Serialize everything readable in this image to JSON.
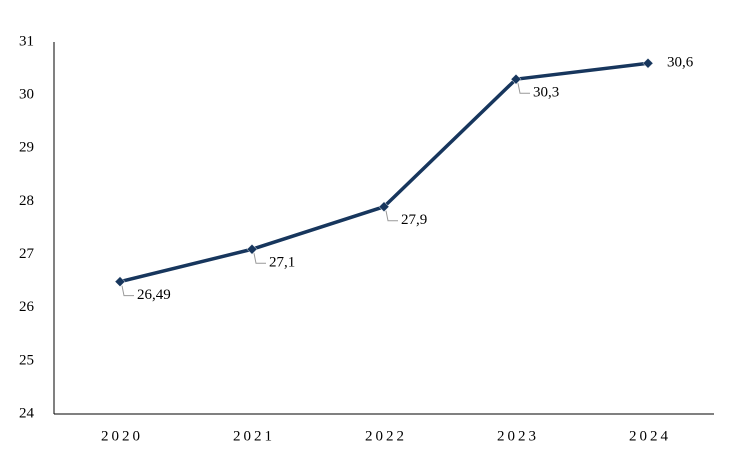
{
  "chart_data": {
    "type": "line",
    "categories": [
      "2020",
      "2021",
      "2022",
      "2023",
      "2024"
    ],
    "series": [
      {
        "color": "#17365d",
        "values": [
          26.49,
          27.1,
          27.9,
          30.3,
          30.6
        ],
        "value_labels": [
          "26,49",
          "27,1",
          "27,9",
          "30,3",
          "30,6"
        ]
      }
    ],
    "ylim": [
      24,
      31
    ],
    "yticks": [
      24,
      25,
      26,
      27,
      28,
      29,
      30,
      31
    ],
    "grid": false
  }
}
